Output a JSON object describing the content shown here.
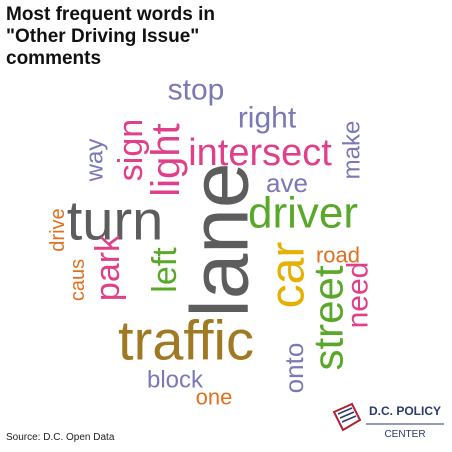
{
  "chart_data": {
    "type": "wordcloud",
    "title": "Most frequent words in \"Other Driving Issue\" comments",
    "source": "Source: D.C. Open Data",
    "words": [
      "stop",
      "right",
      "way",
      "sign",
      "light",
      "intersect",
      "make",
      "ave",
      "drive",
      "turn",
      "lane",
      "driver",
      "car",
      "road",
      "caus",
      "park",
      "left",
      "need",
      "street",
      "traffic",
      "onto",
      "block",
      "one"
    ],
    "values": [
      30,
      30,
      24,
      34,
      40,
      38,
      24,
      26,
      20,
      56,
      82,
      44,
      48,
      22,
      20,
      34,
      34,
      30,
      42,
      56,
      26,
      24,
      22
    ],
    "colors": [
      "#7b78b6",
      "#7b78b6",
      "#7b78b6",
      "#e0408a",
      "#e0408a",
      "#e0408a",
      "#7b78b6",
      "#7b78b6",
      "#e07020",
      "#5d5d5d",
      "#5d5d5d",
      "#5aa82a",
      "#e6b000",
      "#e07020",
      "#e07020",
      "#e0408a",
      "#5aa82a",
      "#e0408a",
      "#5aa82a",
      "#a07a22",
      "#7b78b6",
      "#7b78b6",
      "#e07020"
    ]
  },
  "logo": {
    "line1": "D.C. POLICY",
    "line2": "CENTER"
  }
}
